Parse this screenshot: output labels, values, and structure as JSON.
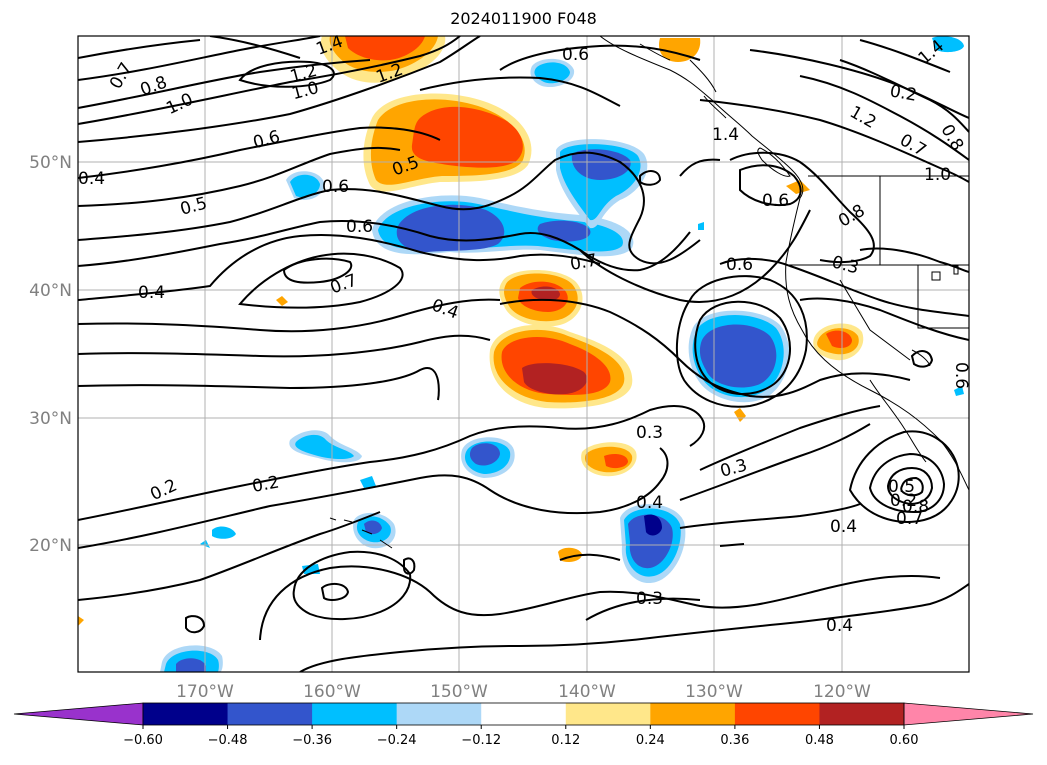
{
  "title": "2024011900 F048",
  "lat_labels": [
    "50°N",
    "40°N",
    "30°N",
    "20°N"
  ],
  "lon_labels": [
    "170°W",
    "160°W",
    "150°W",
    "140°W",
    "130°W",
    "120°W"
  ],
  "contour_labels": [
    "0.7",
    "0.8",
    "1.0",
    "1.2",
    "1.4",
    "1.2",
    "1.0",
    "0.6",
    "0.6",
    "0.6",
    "0.5",
    "0.5",
    "0.6",
    "0.7",
    "0.7",
    "0.4",
    "0.4",
    "0.6",
    "0.4",
    "0.3",
    "0.3",
    "0.3",
    "0.4",
    "0.2",
    "0.2",
    "0.3",
    "0.4",
    "0.2",
    "1.2",
    "0.7",
    "1.0",
    "0.8",
    "1.4",
    "0.8",
    "0.7",
    "0.6",
    "0.5",
    "0.2",
    "0.8",
    "0.6",
    "0.4",
    "1.4"
  ],
  "colorbar": {
    "tick_labels": [
      "−0.60",
      "−0.48",
      "−0.36",
      "−0.24",
      "−0.12",
      "0.12",
      "0.24",
      "0.36",
      "0.48",
      "0.60"
    ],
    "colors": {
      "under": "#9932cc",
      "bins": [
        "#00008b",
        "#3355cc",
        "#00bfff",
        "#add8f7",
        "#ffffff",
        "#ffe78a",
        "#ffa500",
        "#ff4500",
        "#b22222"
      ],
      "over": "#ff85a9"
    }
  }
}
